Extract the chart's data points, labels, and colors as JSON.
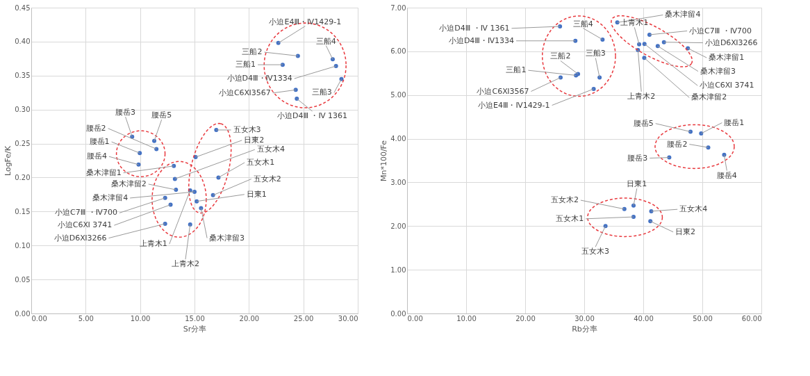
{
  "chart_data": [
    {
      "type": "scatter",
      "xlabel": "Sr分率",
      "ylabel": "LogFe/K",
      "grid": true,
      "marker": "circle",
      "xlim": [
        0,
        30
      ],
      "xticks": [
        {
          "value": 0,
          "label": "0.00"
        },
        {
          "value": 5,
          "label": "5.00"
        },
        {
          "value": 10,
          "label": "10.00"
        },
        {
          "value": 15,
          "label": "15.00"
        },
        {
          "value": 20,
          "label": "20.00"
        },
        {
          "value": 25,
          "label": "25.00"
        },
        {
          "value": 30,
          "label": "30.00"
        }
      ],
      "ylim": [
        0,
        0.45
      ],
      "yticks": [
        {
          "value": 0,
          "label": "0.00"
        },
        {
          "value": 0.05,
          "label": "0.05"
        },
        {
          "value": 0.1,
          "label": "0.10"
        },
        {
          "value": 0.15,
          "label": "0.15"
        },
        {
          "value": 0.2,
          "label": "0.20"
        },
        {
          "value": 0.25,
          "label": "0.25"
        },
        {
          "value": 0.3,
          "label": "0.30"
        },
        {
          "value": 0.35,
          "label": "0.35"
        },
        {
          "value": 0.4,
          "label": "0.40"
        },
        {
          "value": 0.45,
          "label": "0.45"
        }
      ],
      "series": [
        {
          "type": "scatter",
          "color": "#4472c4",
          "x": [
            22.7,
            24.5,
            23.1,
            27.7,
            28.0,
            28.5,
            24.3,
            24.4,
            9.27,
            11.3,
            11.5,
            9.97,
            9.86,
            17.0,
            15.1,
            13.2,
            17.2,
            13.1,
            13.3,
            14.6,
            15.0,
            16.7,
            15.2,
            15.6,
            12.3,
            12.8,
            12.3,
            14.6
          ],
          "values": [
            0.398,
            0.379,
            0.366,
            0.374,
            0.364,
            0.345,
            0.329,
            0.316,
            0.26,
            0.254,
            0.242,
            0.236,
            0.219,
            0.27,
            0.23,
            0.198,
            0.2,
            0.217,
            0.182,
            0.181,
            0.179,
            0.174,
            0.165,
            0.155,
            0.17,
            0.16,
            0.132,
            0.131
          ]
        }
      ],
      "annotations": [
        {
          "text": "小迫E4Ⅲ・Ⅳ1429-1",
          "x": 22.7,
          "y": 0.398
        },
        {
          "text": "三船2",
          "x": 24.5,
          "y": 0.379
        },
        {
          "text": "三船1",
          "x": 23.1,
          "y": 0.366
        },
        {
          "text": "三船4",
          "x": 27.7,
          "y": 0.374
        },
        {
          "text": "小迫D4Ⅲ・Ⅳ1334",
          "x": 28.0,
          "y": 0.364
        },
        {
          "text": "三船3",
          "x": 28.5,
          "y": 0.345
        },
        {
          "text": "小迫C6Ⅺ3567",
          "x": 24.3,
          "y": 0.329
        },
        {
          "text": "小迫D4Ⅲ ・Ⅳ 1361",
          "x": 24.4,
          "y": 0.316
        },
        {
          "text": "腰岳3",
          "x": 9.27,
          "y": 0.26
        },
        {
          "text": "腰岳5",
          "x": 11.3,
          "y": 0.254
        },
        {
          "text": "腰岳2",
          "x": 11.5,
          "y": 0.242
        },
        {
          "text": "腰岳1",
          "x": 9.97,
          "y": 0.236
        },
        {
          "text": "腰岳4",
          "x": 9.86,
          "y": 0.219
        },
        {
          "text": "五女木3",
          "x": 17.0,
          "y": 0.27
        },
        {
          "text": "日東2",
          "x": 15.1,
          "y": 0.23
        },
        {
          "text": "五女木4",
          "x": 13.2,
          "y": 0.198
        },
        {
          "text": "五女木1",
          "x": 17.2,
          "y": 0.2
        },
        {
          "text": "桑木津留1",
          "x": 13.1,
          "y": 0.217
        },
        {
          "text": "桑木津留2",
          "x": 13.3,
          "y": 0.182
        },
        {
          "text": "上青木1",
          "x": 14.6,
          "y": 0.181
        },
        {
          "text": "桑木津留4",
          "x": 15.0,
          "y": 0.179
        },
        {
          "text": "五女木2",
          "x": 16.7,
          "y": 0.174
        },
        {
          "text": "日東1",
          "x": 15.2,
          "y": 0.165
        },
        {
          "text": "桑木津留3",
          "x": 15.6,
          "y": 0.155
        },
        {
          "text": "小迫C7Ⅲ ・Ⅳ700",
          "x": 12.3,
          "y": 0.17
        },
        {
          "text": "小迫C6Ⅺ 3741",
          "x": 12.8,
          "y": 0.16
        },
        {
          "text": "小迫D6Ⅺ3266",
          "x": 12.3,
          "y": 0.132
        },
        {
          "text": "上青木2",
          "x": 14.6,
          "y": 0.131
        }
      ]
    },
    {
      "type": "scatter",
      "xlabel": "Rb分率",
      "ylabel": "Mn*100/Fe",
      "grid": true,
      "marker": "circle",
      "xlim": [
        0,
        60
      ],
      "xticks": [
        {
          "value": 0,
          "label": "0.00"
        },
        {
          "value": 10,
          "label": "10.00"
        },
        {
          "value": 20,
          "label": "20.00"
        },
        {
          "value": 30,
          "label": "30.00"
        },
        {
          "value": 40,
          "label": "40.00"
        },
        {
          "value": 50,
          "label": "50.00"
        },
        {
          "value": 60,
          "label": "60.00"
        }
      ],
      "ylim": [
        0,
        7
      ],
      "yticks": [
        {
          "value": 0,
          "label": "0.00"
        },
        {
          "value": 1,
          "label": "1.00"
        },
        {
          "value": 2,
          "label": "2.00"
        },
        {
          "value": 3,
          "label": "3.00"
        },
        {
          "value": 4,
          "label": "4.00"
        },
        {
          "value": 5,
          "label": "5.00"
        },
        {
          "value": 6,
          "label": "6.00"
        },
        {
          "value": 7,
          "label": "7.00"
        }
      ],
      "series": [
        {
          "type": "scatter",
          "color": "#4472c4",
          "x": [
            25.9,
            28.5,
            33.1,
            28.95,
            28.6,
            26.0,
            32.6,
            31.6,
            35.6,
            41.05,
            43.5,
            47.55,
            42.45,
            39.3,
            40.2,
            39.1,
            40.17,
            48.0,
            49.8,
            51.0,
            53.7,
            44.4,
            38.35,
            36.8,
            41.35,
            38.35,
            41.2,
            33.6
          ],
          "values": [
            6.57,
            6.24,
            6.27,
            5.48,
            5.45,
            5.4,
            5.4,
            5.14,
            6.66,
            6.38,
            6.21,
            6.07,
            6.12,
            6.16,
            6.17,
            6.03,
            5.85,
            4.16,
            4.12,
            3.8,
            3.63,
            3.57,
            2.47,
            2.39,
            2.34,
            2.21,
            2.11,
            2.0
          ]
        }
      ],
      "annotations": [
        {
          "text": "小迫D4Ⅲ ・Ⅳ 1361",
          "x": 25.9,
          "y": 6.57
        },
        {
          "text": "小迫D4Ⅲ・Ⅳ1334",
          "x": 28.5,
          "y": 6.24
        },
        {
          "text": "三船4",
          "x": 33.1,
          "y": 6.27
        },
        {
          "text": "三船2",
          "x": 28.95,
          "y": 5.48
        },
        {
          "text": "三船1",
          "x": 28.6,
          "y": 5.45
        },
        {
          "text": "小迫C6Ⅺ3567",
          "x": 26.0,
          "y": 5.4
        },
        {
          "text": "三船3",
          "x": 32.6,
          "y": 5.4
        },
        {
          "text": "小迫E4Ⅲ・Ⅳ1429-1",
          "x": 31.6,
          "y": 5.14
        },
        {
          "text": "桑木津留4",
          "x": 35.6,
          "y": 6.66
        },
        {
          "text": "小迫C7Ⅲ ・Ⅳ700",
          "x": 41.05,
          "y": 6.38
        },
        {
          "text": "小迫D6Ⅺ3266",
          "x": 43.5,
          "y": 6.21
        },
        {
          "text": "桑木津留1",
          "x": 47.55,
          "y": 6.07
        },
        {
          "text": "桑木津留3",
          "x": 42.45,
          "y": 6.12
        },
        {
          "text": "上青木1",
          "x": 39.3,
          "y": 6.16
        },
        {
          "text": "小迫C6Ⅺ 3741",
          "x": 40.2,
          "y": 6.17
        },
        {
          "text": "上青木2",
          "x": 39.1,
          "y": 6.03
        },
        {
          "text": "桑木津留2",
          "x": 40.17,
          "y": 5.85
        },
        {
          "text": "腰岳5",
          "x": 48.0,
          "y": 4.16
        },
        {
          "text": "腰岳1",
          "x": 49.8,
          "y": 4.12
        },
        {
          "text": "腰岳2",
          "x": 51.0,
          "y": 3.8
        },
        {
          "text": "腰岳4",
          "x": 53.7,
          "y": 3.63
        },
        {
          "text": "腰岳3",
          "x": 44.4,
          "y": 3.57
        },
        {
          "text": "日東1",
          "x": 38.35,
          "y": 2.47
        },
        {
          "text": "五女木2",
          "x": 36.8,
          "y": 2.39
        },
        {
          "text": "五女木4",
          "x": 41.35,
          "y": 2.34
        },
        {
          "text": "五女木1",
          "x": 38.35,
          "y": 2.21
        },
        {
          "text": "日東2",
          "x": 41.2,
          "y": 2.11
        },
        {
          "text": "五女木3",
          "x": 33.6,
          "y": 2.0
        }
      ]
    }
  ]
}
